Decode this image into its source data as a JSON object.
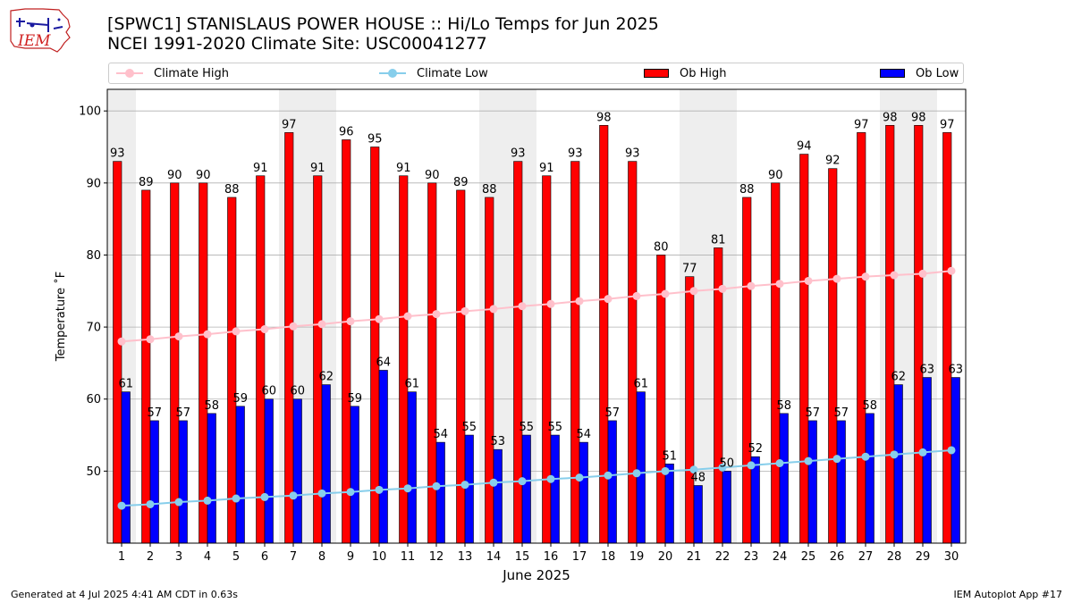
{
  "logo": {
    "text": "IEM"
  },
  "header": {
    "title": "[SPWC1] STANISLAUS POWER HOUSE :: Hi/Lo Temps for Jun 2025",
    "subtitle": "NCEI 1991-2020 Climate Site: USC00041277"
  },
  "footer": {
    "generated": "Generated at 4 Jul 2025 4:41 AM CDT in 0.63s",
    "app": "IEM Autoplot App #17"
  },
  "colors": {
    "ob_high": "#ff0000",
    "ob_low": "#0000ff",
    "climate_high": "#ffc0cb",
    "climate_low": "#87ceeb",
    "weekend_shade": "#eeeeee"
  },
  "chart_data": {
    "type": "bar",
    "xlabel": "June 2025",
    "ylabel": "Temperature ˚F",
    "ylim": [
      40,
      103
    ],
    "yticks": [
      50,
      60,
      70,
      80,
      90,
      100
    ],
    "grid": true,
    "legend_position": "top",
    "categories": [
      "1",
      "2",
      "3",
      "4",
      "5",
      "6",
      "7",
      "8",
      "9",
      "10",
      "11",
      "12",
      "13",
      "14",
      "15",
      "16",
      "17",
      "18",
      "19",
      "20",
      "21",
      "22",
      "23",
      "24",
      "25",
      "26",
      "27",
      "28",
      "29",
      "30"
    ],
    "shaded_days": [
      1,
      7,
      8,
      14,
      15,
      21,
      22,
      28,
      29
    ],
    "series": [
      {
        "name": "Ob High",
        "kind": "bar",
        "values": [
          93,
          89,
          90,
          90,
          88,
          91,
          97,
          91,
          96,
          95,
          91,
          90,
          89,
          88,
          93,
          91,
          93,
          98,
          93,
          80,
          77,
          81,
          88,
          90,
          94,
          92,
          97,
          98,
          98,
          97
        ],
        "labels": [
          93,
          89,
          90,
          90,
          88,
          91,
          97,
          91,
          96,
          95,
          91,
          90,
          89,
          88,
          93,
          91,
          93,
          98,
          93,
          80,
          77,
          81,
          88,
          90,
          94,
          92,
          97,
          98,
          98,
          97
        ]
      },
      {
        "name": "Ob Low",
        "kind": "bar",
        "values": [
          61,
          57,
          57,
          58,
          59,
          60,
          60,
          62,
          59,
          64,
          61,
          54,
          55,
          53,
          55,
          55,
          54,
          57,
          61,
          51,
          48,
          50,
          52,
          58,
          57,
          57,
          58,
          62,
          63,
          63
        ],
        "labels": [
          61,
          57,
          57,
          58,
          59,
          60,
          60,
          62,
          59,
          64,
          61,
          54,
          55,
          53,
          55,
          55,
          54,
          57,
          61,
          51,
          48,
          50,
          52,
          58,
          57,
          57,
          58,
          62,
          63,
          63
        ]
      },
      {
        "name": "Climate High",
        "kind": "line",
        "values": [
          68.0,
          68.3,
          68.7,
          69.0,
          69.4,
          69.7,
          70.1,
          70.4,
          70.8,
          71.1,
          71.5,
          71.8,
          72.2,
          72.5,
          72.9,
          73.2,
          73.6,
          73.9,
          74.3,
          74.6,
          75.0,
          75.3,
          75.7,
          76.0,
          76.4,
          76.7,
          77.0,
          77.2,
          77.4,
          77.8
        ]
      },
      {
        "name": "Climate Low",
        "kind": "line",
        "values": [
          45.2,
          45.4,
          45.7,
          45.9,
          46.2,
          46.4,
          46.6,
          46.9,
          47.1,
          47.4,
          47.6,
          47.9,
          48.1,
          48.4,
          48.6,
          48.9,
          49.1,
          49.4,
          49.7,
          50.0,
          50.2,
          50.5,
          50.8,
          51.1,
          51.4,
          51.7,
          52.0,
          52.3,
          52.6,
          52.9
        ]
      }
    ]
  }
}
